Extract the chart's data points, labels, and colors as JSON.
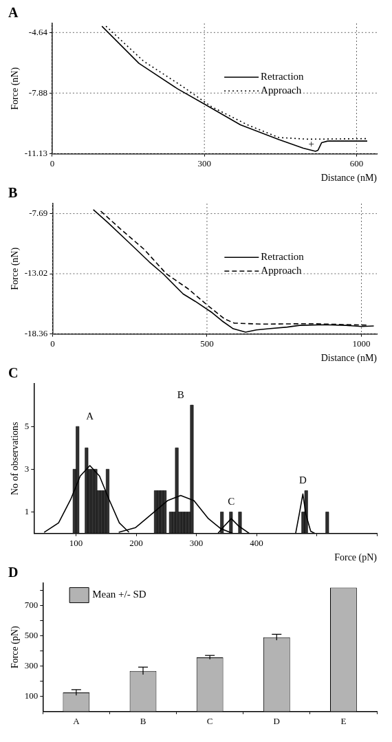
{
  "chart_data": [
    {
      "type": "line",
      "title": "A",
      "xlabel": "Distance (nM)",
      "ylabel": "Force (nN)",
      "xlim": [
        0,
        640
      ],
      "xticks": [
        0,
        300,
        600
      ],
      "ylim": [
        -11.13,
        -4.15
      ],
      "yticks": [
        -11.13,
        -7.88,
        -4.64
      ],
      "grid": true,
      "legend": "right",
      "series": [
        {
          "name": "Retraction",
          "color": "#000000",
          "line_style": "solid",
          "x": [
            98,
            171,
            247,
            298,
            371,
            447,
            495,
            519,
            524,
            531,
            543,
            621
          ],
          "values": [
            -4.3,
            -6.29,
            -7.65,
            -8.44,
            -9.58,
            -10.37,
            -10.83,
            -11.0,
            -10.94,
            -10.54,
            -10.45,
            -10.45
          ]
        },
        {
          "name": "Approach",
          "color": "#000000",
          "line_style": "dotted",
          "x": [
            106,
            180,
            257,
            314,
            385,
            447,
            505,
            621
          ],
          "values": [
            -4.3,
            -6.17,
            -7.53,
            -8.61,
            -9.58,
            -10.26,
            -10.35,
            -10.32
          ]
        }
      ],
      "annotations": [
        "+"
      ]
    },
    {
      "type": "line",
      "title": "B",
      "xlabel": "Distance (nM)",
      "ylabel": "Force (nN)",
      "xlim": [
        0,
        1050
      ],
      "xticks": [
        0,
        500,
        1000
      ],
      "ylim": [
        -18.36,
        -6.8
      ],
      "yticks": [
        -18.36,
        -13.02,
        -7.69
      ],
      "grid": true,
      "legend": "right",
      "series": [
        {
          "name": "Retraction",
          "color": "#000000",
          "line_style": "solid",
          "x": [
            132,
            179,
            250,
            313,
            360,
            423,
            462,
            517,
            549,
            585,
            625,
            660,
            700,
            760,
            800,
            880,
            950,
            1000,
            1040
          ],
          "values": [
            -7.34,
            -8.48,
            -10.32,
            -11.97,
            -13.08,
            -14.82,
            -15.47,
            -16.48,
            -17.21,
            -17.9,
            -18.2,
            -18.0,
            -17.9,
            -17.75,
            -17.6,
            -17.55,
            -17.6,
            -17.7,
            -17.65
          ]
        },
        {
          "name": "Approach",
          "color": "#000000",
          "line_style": "dashed",
          "x": [
            156,
            219,
            297,
            368,
            439,
            502,
            557,
            588,
            675,
            832,
            1020
          ],
          "values": [
            -7.47,
            -9.03,
            -10.87,
            -13.02,
            -14.36,
            -15.83,
            -17.03,
            -17.4,
            -17.49,
            -17.45,
            -17.58
          ]
        }
      ]
    },
    {
      "type": "histogram",
      "title": "C",
      "xlabel": "Force (pN)",
      "ylabel": "No of observations",
      "xlim": [
        30,
        600
      ],
      "xticks": [
        100,
        200,
        300,
        400,
        {
          "value": 500,
          "label": null
        },
        {
          "value": 600,
          "label": null
        }
      ],
      "ylim": [
        0,
        7
      ],
      "yticks": [
        1,
        3,
        5
      ],
      "color": "#303030",
      "bins": [
        95,
        100,
        105,
        115,
        120,
        125,
        130,
        135,
        140,
        145,
        150,
        155,
        230,
        235,
        240,
        245,
        250,
        255,
        260,
        265,
        270,
        275,
        280,
        285,
        290,
        295,
        340,
        345,
        355,
        360,
        370,
        375,
        475,
        480,
        485,
        515,
        520
      ],
      "values": [
        3,
        5,
        0,
        4,
        3,
        3,
        3,
        2,
        2,
        2,
        3,
        0,
        2,
        2,
        2,
        2,
        0,
        1,
        1,
        4,
        1,
        1,
        1,
        1,
        6,
        0,
        1,
        0,
        1,
        0,
        1,
        0,
        1,
        2,
        0,
        1
      ],
      "series": [
        {
          "type": "line",
          "color": "#000000",
          "x": [
            47,
            71,
            91,
            107,
            123,
            139,
            155,
            172,
            188
          ],
          "values": [
            0.05,
            0.49,
            1.58,
            2.68,
            3.17,
            2.68,
            1.58,
            0.49,
            0.05
          ]
        },
        {
          "type": "line",
          "color": "#000000",
          "x": [
            171,
            199,
            227,
            252,
            274,
            296,
            320,
            340,
            360
          ],
          "values": [
            0.05,
            0.27,
            0.93,
            1.53,
            1.77,
            1.53,
            0.69,
            0.23,
            0
          ]
        },
        {
          "type": "line",
          "color": "#000000",
          "x": [
            336,
            345,
            358,
            370,
            388
          ],
          "values": [
            0,
            0.3,
            0.69,
            0.35,
            0
          ]
        },
        {
          "type": "line",
          "color": "#000000",
          "x": [
            465,
            471,
            477,
            482,
            490,
            497
          ],
          "values": [
            0,
            0.9,
            1.84,
            0.9,
            0.1,
            0
          ]
        }
      ],
      "annotations": [
        "A",
        "B",
        "C",
        "D"
      ]
    },
    {
      "type": "bar",
      "title": "D",
      "ylabel": "Force (pN)",
      "categories": [
        "A",
        "B",
        "C",
        "D",
        "E"
      ],
      "ylim": [
        0,
        850
      ],
      "yticks": [
        100,
        {
          "value": 200,
          "label": null
        },
        300,
        {
          "value": 400,
          "label": null
        },
        500,
        {
          "value": 600,
          "label": null
        },
        700,
        {
          "value": 800,
          "label": null
        }
      ],
      "legend": "top left",
      "series": [
        {
          "name": "Mean +/- SD",
          "color": "#b3b3b3",
          "values": [
            125,
            268,
            358,
            491,
            820
          ],
          "errors": [
            19,
            25,
            13,
            20,
            null
          ]
        }
      ]
    }
  ]
}
